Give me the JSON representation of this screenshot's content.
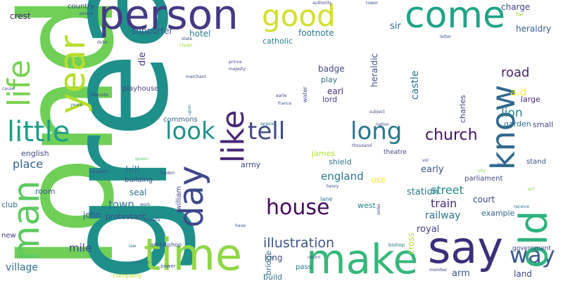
{
  "words": {
    "london": "london",
    "great": "great",
    "person": "person",
    "come": "come",
    "good": "good",
    "year": "year",
    "man": "man",
    "life": "life",
    "time": "time",
    "make": "make",
    "say": "say",
    "day": "day",
    "like": "like",
    "little": "little",
    "look": "look",
    "tell": "tell",
    "long": "long",
    "know": "know",
    "old": "old",
    "way": "way",
    "house": "house",
    "church": "church",
    "illustration": "illustration",
    "street": "street",
    "place": "place",
    "hill": "hill",
    "town": "town",
    "road": "road",
    "lion": "lion",
    "castle": "castle",
    "england": "england",
    "train": "train",
    "station": "station",
    "railway": "railway",
    "royal": "royal",
    "mile": "mile",
    "village": "village",
    "king": "king",
    "arm": "arm",
    "land": "land",
    "bridge": "bridge",
    "cross": "cross",
    "crest": "crest",
    "supporter": "supporter",
    "hotel": "hotel",
    "die": "die",
    "footnote": "footnote",
    "catholic": "catholic",
    "sir": "sir",
    "heraldic": "heraldic",
    "charge": "charge",
    "heraldry": "heraldry",
    "badge": "badge",
    "play": "play",
    "earl": "earl",
    "lord": "lord",
    "playhouse": "playhouse",
    "commons": "commons",
    "shield": "shield",
    "seal": "seal",
    "building": "building",
    "parliament": "parliament",
    "court": "court",
    "example": "example",
    "protestant": "protestant",
    "john": "john",
    "william": "william",
    "english": "english",
    "room": "room",
    "club": "club",
    "new": "new",
    "early": "early",
    "use": "use",
    "army": "army",
    "james": "james",
    "west": "west",
    "theatre": "theatre",
    "charles": "charles",
    "large": "large",
    "garden": "garden",
    "small": "small",
    "stand": "stand",
    "government": "government",
    "water": "water",
    "a.d": "a.d",
    "pass": "pass",
    "build": "build",
    "company": "company",
    "archbishop": "archbishop",
    "country": "country",
    "power": "power",
    "present": "present",
    "lane": "lane",
    "bishop": "bishop",
    "subject": "subject",
    "nation": "nation",
    "thousand": "thousand",
    "france": "france",
    "prince": "prince",
    "sidenote": "sidenote",
    "yeare": "yeare",
    "cause": "cause",
    "duke": "duke",
    "state": "state",
    "river": "river",
    "authority": "authority",
    "palace": "palace",
    "far": "far",
    "letter": "letter",
    "city": "city",
    "queen": "queen",
    "kingdom": "kingdom",
    "work": "work",
    "receive": "receive",
    "hall": "hall",
    "order": "order",
    "return": "return",
    "member": "member",
    "victoria": "victoria",
    "majesty": "majesty",
    "merchant": "merchant",
    "appear": "appear",
    "upon": "upon",
    "henry": "henry",
    "earle": "earle",
    "tower": "tower",
    "act": "act",
    "london2": "london",
    "law": "law",
    "haue": "haue",
    "vol": "vol"
  }
}
